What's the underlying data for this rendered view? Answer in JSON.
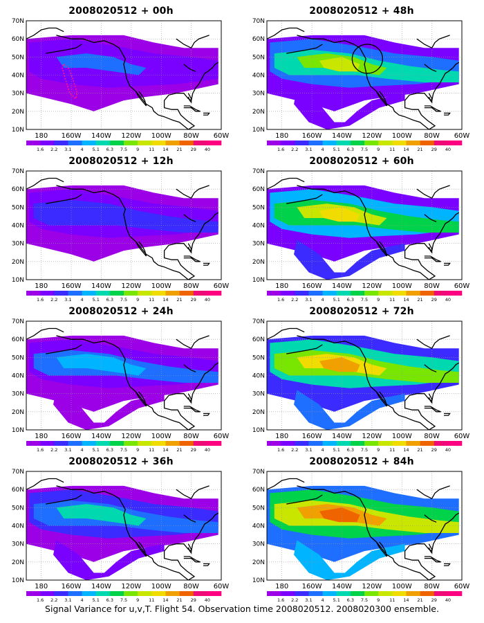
{
  "figure": {
    "caption": "Signal Variance for u,v,T. Flight 54. Observation time 2008020512. 2008020300 ensemble.",
    "lat_labels": [
      "70N",
      "60N",
      "50N",
      "40N",
      "30N",
      "20N",
      "10N"
    ],
    "lon_labels": [
      "180",
      "160W",
      "140W",
      "120W",
      "100W",
      "80W",
      "60W"
    ],
    "colorbar": {
      "labels": [
        "1.6",
        "2.2",
        "3.1",
        "4",
        "5.1",
        "6.3",
        "7.5",
        "9",
        "11",
        "14",
        "21",
        "29",
        "40"
      ],
      "colors": [
        "#9b00e6",
        "#7a00ff",
        "#3b2bff",
        "#1e6eff",
        "#00b4ff",
        "#00d8b0",
        "#00d24a",
        "#78e600",
        "#c8e600",
        "#f0dc00",
        "#f0a000",
        "#f06400",
        "#f00a78",
        "#ff0080"
      ]
    },
    "panels": [
      {
        "title": "2008020512 + 00h",
        "level": 0
      },
      {
        "title": "2008020512 + 12h",
        "level": 1
      },
      {
        "title": "2008020512 + 24h",
        "level": 2
      },
      {
        "title": "2008020512 + 36h",
        "level": 3
      },
      {
        "title": "2008020512 + 48h",
        "level": 4
      },
      {
        "title": "2008020512 + 60h",
        "level": 5
      },
      {
        "title": "2008020512 + 72h",
        "level": 6
      },
      {
        "title": "2008020512 + 84h",
        "level": 7
      }
    ]
  }
}
